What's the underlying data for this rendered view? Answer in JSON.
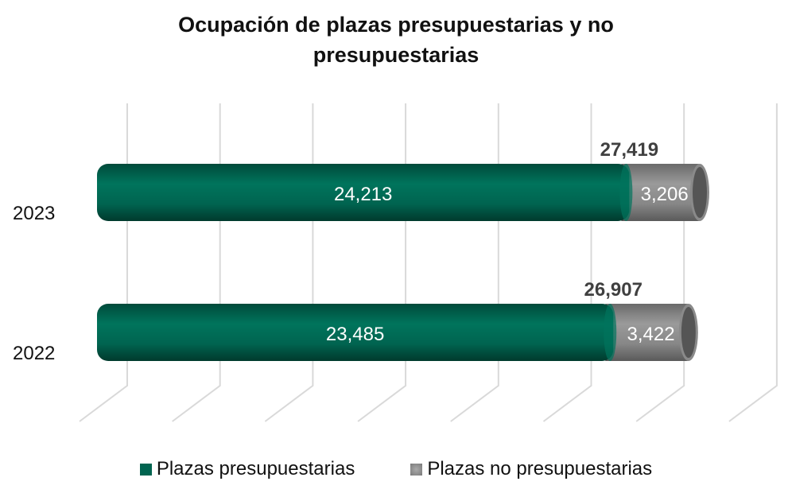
{
  "chart_data": {
    "type": "bar",
    "orientation": "horizontal",
    "stacked": true,
    "title": "Ocupación de plazas presupuestarias y no presupuestarias",
    "title_lines": [
      "Ocupación de plazas presupuestarias y no",
      "presupuestarias"
    ],
    "categories": [
      "2023",
      "2022"
    ],
    "series": [
      {
        "name": "Plazas presupuestarias",
        "values": [
          24213,
          23485
        ],
        "labels": [
          "24,213",
          "23,485"
        ],
        "color": "#006450"
      },
      {
        "name": "Plazas no presupuestarias",
        "values": [
          3206,
          3422
        ],
        "labels": [
          "3,206",
          "3,422"
        ],
        "color": "#808080"
      }
    ],
    "totals": [
      27419,
      26907
    ],
    "total_labels": [
      "27,419",
      "26,907"
    ],
    "xlabel": "",
    "ylabel": "",
    "grid": true,
    "legend_position": "bottom"
  }
}
